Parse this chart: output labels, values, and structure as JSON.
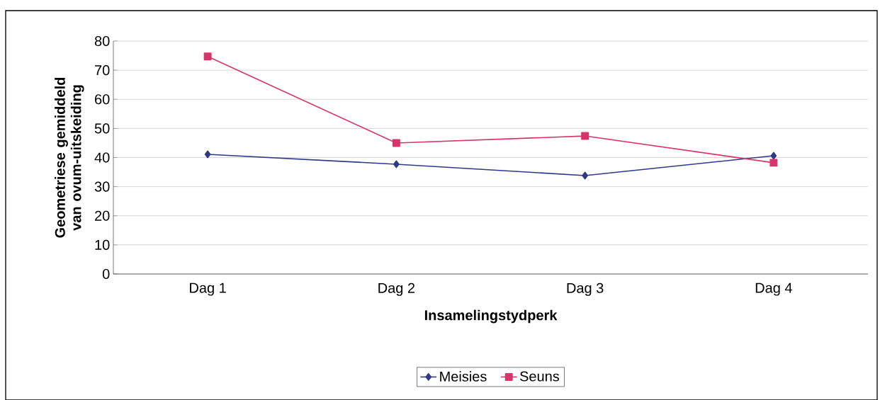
{
  "chart_data": {
    "type": "line",
    "xlabel": "Insamelingstydperk",
    "ylabel": "Geometriese gemiddeld van ovum-uitskeiding",
    "categories": [
      "Dag 1",
      "Dag 2",
      "Dag 3",
      "Dag 4"
    ],
    "series": [
      {
        "name": "Meisies",
        "color": "#2e3a87",
        "marker": "diamond",
        "values": [
          41.1,
          37.7,
          33.8,
          40.6
        ]
      },
      {
        "name": "Seuns",
        "color": "#d9346a",
        "marker": "square",
        "values": [
          74.7,
          45.0,
          47.4,
          38.2
        ]
      }
    ],
    "ylim": [
      0,
      80
    ],
    "yticks": [
      0,
      10,
      20,
      30,
      40,
      50,
      60,
      70,
      80
    ],
    "grid": "y",
    "legend": "bottom",
    "line_style": "solid"
  }
}
